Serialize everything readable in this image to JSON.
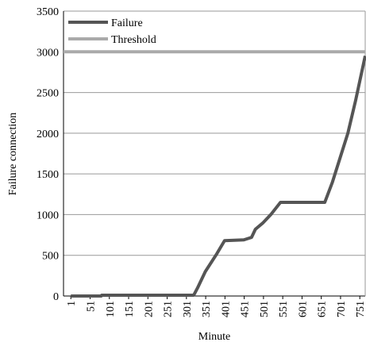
{
  "chart_data": {
    "type": "line",
    "x_label": "Minute",
    "y_label": "Failure connection",
    "xlim": [
      -18,
      765
    ],
    "ylim": [
      0,
      3500
    ],
    "xticks": [
      1,
      51,
      101,
      151,
      201,
      251,
      301,
      351,
      401,
      451,
      501,
      551,
      601,
      651,
      701,
      751
    ],
    "yticks": [
      0,
      500,
      1000,
      1500,
      2000,
      2500,
      3000,
      3500
    ],
    "grid": true,
    "legend": "top-left",
    "series": [
      {
        "name": "Failure",
        "color": "#555555",
        "x": [
          1,
          80,
          81,
          320,
          330,
          350,
          380,
          400,
          450,
          470,
          480,
          500,
          520,
          545,
          660,
          680,
          700,
          720,
          740,
          765
        ],
        "values": [
          0,
          0,
          10,
          10,
          100,
          300,
          520,
          680,
          690,
          720,
          820,
          900,
          1000,
          1150,
          1150,
          1400,
          1700,
          2000,
          2400,
          2950
        ]
      },
      {
        "name": "Threshold",
        "color": "#aaaaaa",
        "x": [
          -18,
          765
        ],
        "values": [
          3000,
          3000
        ]
      }
    ]
  }
}
